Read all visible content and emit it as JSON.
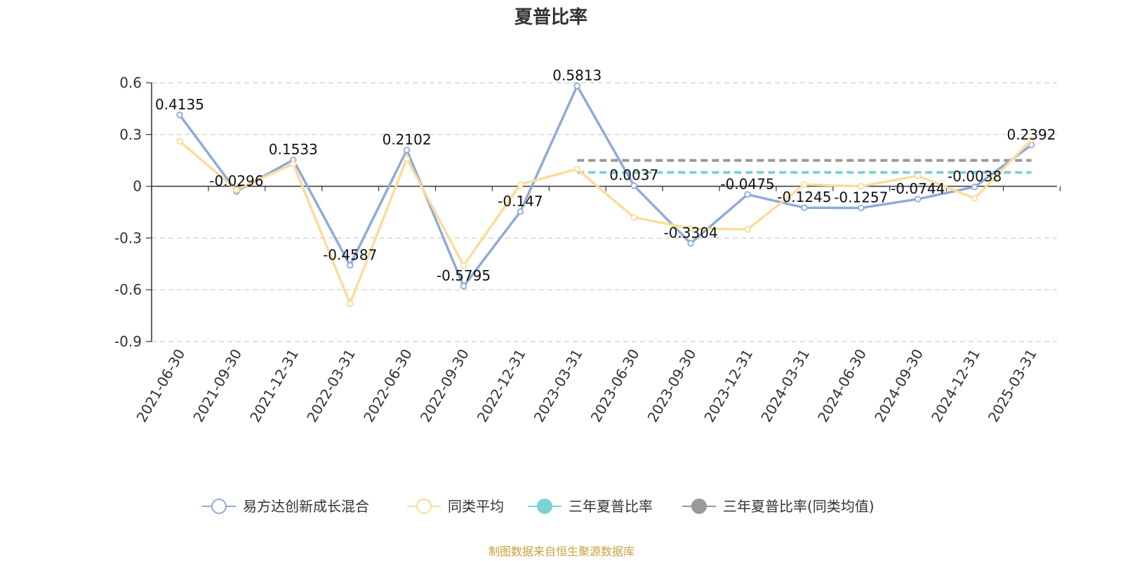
{
  "chart_data": {
    "type": "line",
    "title": "夏普比率",
    "xlabel": "",
    "ylabel": "",
    "ylim": [
      -0.9,
      0.6
    ],
    "yticks": [
      "0.6",
      "0.3",
      "0",
      "-0.3",
      "-0.6",
      "-0.9"
    ],
    "ytick_values": [
      0.6,
      0.3,
      0,
      -0.3,
      -0.6,
      -0.9
    ],
    "grid": true,
    "legend_position": "bottom-center",
    "categories": [
      "2021-06-30",
      "2021-09-30",
      "2021-12-31",
      "2022-03-31",
      "2022-06-30",
      "2022-09-30",
      "2022-12-31",
      "2023-03-31",
      "2023-06-30",
      "2023-09-30",
      "2023-12-31",
      "2024-03-31",
      "2024-06-30",
      "2024-09-30",
      "2024-12-31",
      "2025-03-31"
    ],
    "series": [
      {
        "name": "易方达创新成长混合",
        "color": "#8eabd8",
        "values": [
          0.4135,
          -0.0296,
          0.1533,
          -0.4587,
          0.2102,
          -0.5795,
          -0.147,
          0.5813,
          0.0037,
          -0.3304,
          -0.0475,
          -0.1245,
          -0.1257,
          -0.0744,
          -0.0038,
          0.2392
        ],
        "labels": [
          "0.4135",
          "-0.0296",
          "0.1533",
          "-0.4587",
          "0.2102",
          "-0.5795",
          "-0.147",
          "0.5813",
          "0.0037",
          "-0.3304",
          "-0.0475",
          "-0.1245",
          "-0.1257",
          "-0.0744",
          "-0.0038",
          "0.2392"
        ]
      },
      {
        "name": "同类平均",
        "color": "#fcdc9a",
        "values": [
          0.26,
          -0.02,
          0.13,
          -0.68,
          0.16,
          -0.46,
          0.01,
          0.1,
          -0.18,
          -0.245,
          -0.25,
          0.01,
          0.0,
          0.06,
          -0.07,
          0.27
        ]
      },
      {
        "name": "三年夏普比率",
        "color": "#7dd3d3",
        "value": 0.08,
        "from": "2023-03-31",
        "to": "2025-03-31"
      },
      {
        "name": "三年夏普比率(同类均值)",
        "color": "#999999",
        "value": 0.15,
        "from": "2023-03-31",
        "to": "2025-03-31"
      }
    ]
  },
  "source_text": "制图数据来自恒生聚源数据库"
}
